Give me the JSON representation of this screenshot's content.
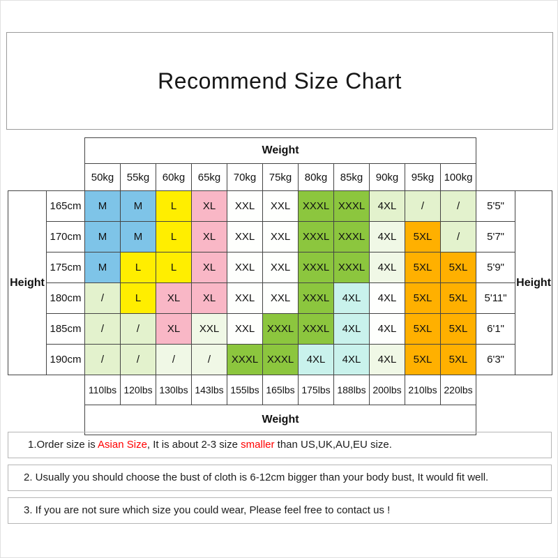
{
  "title": "Recommend Size Chart",
  "labels": {
    "weight_top": "Weight",
    "weight_bottom": "Weight",
    "height_left": "Height",
    "height_right": "Height"
  },
  "palette": {
    "blue": "#7EC4E8",
    "yellow": "#FFEE00",
    "pink": "#F9B7C6",
    "green": "#8CC63E",
    "orange": "#FFB000",
    "cyan": "#C9F2EC",
    "pale": "#E3F2CD",
    "fade": "#F0F8E6",
    "white": "#FEFFFD"
  },
  "chart_data": {
    "type": "table",
    "title": "Recommend Size Chart",
    "weight_kg": [
      "50kg",
      "55kg",
      "60kg",
      "65kg",
      "70kg",
      "75kg",
      "80kg",
      "85kg",
      "90kg",
      "95kg",
      "100kg"
    ],
    "weight_lbs": [
      "110lbs",
      "120lbs",
      "130lbs",
      "143lbs",
      "155lbs",
      "165lbs",
      "175lbs",
      "188lbs",
      "200lbs",
      "210lbs",
      "220lbs"
    ],
    "height_cm": [
      "165cm",
      "170cm",
      "175cm",
      "180cm",
      "185cm",
      "190cm"
    ],
    "height_ft": [
      "5'5\"",
      "5'7\"",
      "5'9\"",
      "5'11\"",
      "6'1\"",
      "6'3\""
    ],
    "sizes": [
      [
        "M",
        "M",
        "L",
        "XL",
        "XXL",
        "XXL",
        "XXXL",
        "XXXL",
        "4XL",
        "/",
        "/"
      ],
      [
        "M",
        "M",
        "L",
        "XL",
        "XXL",
        "XXL",
        "XXXL",
        "XXXL",
        "4XL",
        "5XL",
        "/"
      ],
      [
        "M",
        "L",
        "L",
        "XL",
        "XXL",
        "XXL",
        "XXXL",
        "XXXL",
        "4XL",
        "5XL",
        "5XL"
      ],
      [
        "/",
        "L",
        "XL",
        "XL",
        "XXL",
        "XXL",
        "XXXL",
        "4XL",
        "4XL",
        "5XL",
        "5XL"
      ],
      [
        "/",
        "/",
        "XL",
        "XXL",
        "XXL",
        "XXXL",
        "XXXL",
        "4XL",
        "4XL",
        "5XL",
        "5XL"
      ],
      [
        "/",
        "/",
        "/",
        "/",
        "XXXL",
        "XXXL",
        "4XL",
        "4XL",
        "4XL",
        "5XL",
        "5XL"
      ]
    ],
    "cell_colors": [
      [
        "blue",
        "blue",
        "yellow",
        "pink",
        "white",
        "white",
        "green",
        "green",
        "pale",
        "pale",
        "pale"
      ],
      [
        "blue",
        "blue",
        "yellow",
        "pink",
        "white",
        "white",
        "green",
        "green",
        "fade",
        "orange",
        "pale"
      ],
      [
        "blue",
        "yellow",
        "yellow",
        "pink",
        "white",
        "white",
        "green",
        "green",
        "fade",
        "orange",
        "orange"
      ],
      [
        "pale",
        "yellow",
        "pink",
        "pink",
        "white",
        "white",
        "green",
        "cyan",
        "white",
        "orange",
        "orange"
      ],
      [
        "pale",
        "pale",
        "pink",
        "fade",
        "white",
        "green",
        "green",
        "cyan",
        "white",
        "orange",
        "orange"
      ],
      [
        "pale",
        "pale",
        "fade",
        "fade",
        "green",
        "green",
        "cyan",
        "cyan",
        "fade",
        "orange",
        "orange"
      ]
    ]
  },
  "notes": [
    {
      "p1": "1.Order size is ",
      "r1": "Asian Size",
      "p2": ", It is about 2-3 size ",
      "r2": "smaller",
      "p3": " than US,UK,AU,EU size."
    },
    {
      "text": "2. Usually you should choose the bust of cloth is 6-12cm bigger than your body bust, It would fit well."
    },
    {
      "text": "3. If you are not sure which size you could wear, Please feel free to contact us !"
    }
  ]
}
